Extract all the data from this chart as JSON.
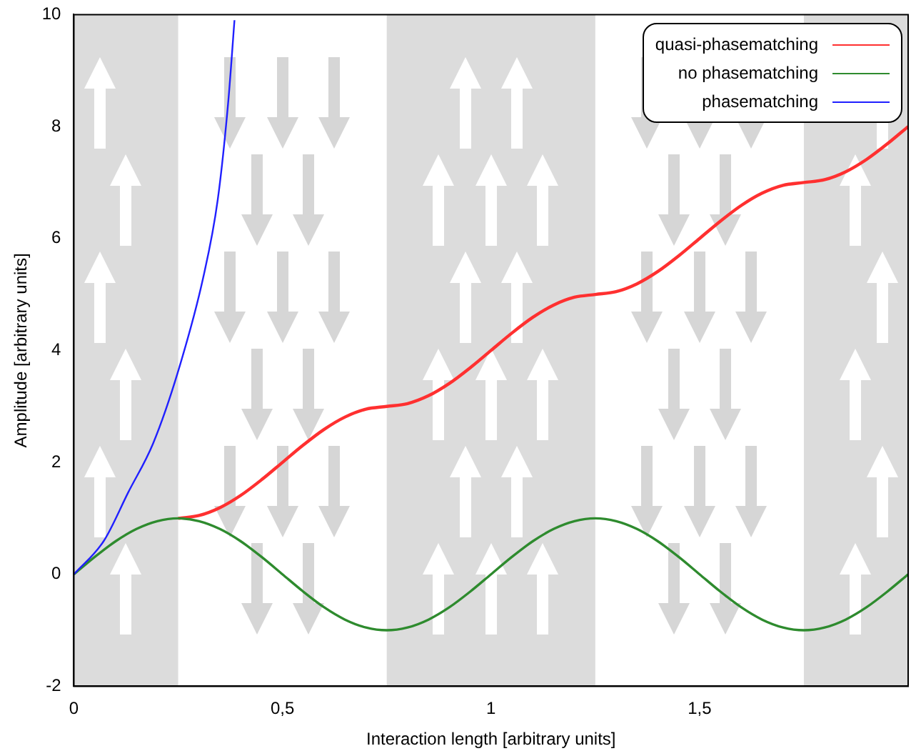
{
  "chart_data": {
    "type": "line",
    "xlabel": "Interaction length [arbitrary units]",
    "ylabel": "Amplitude [arbitrary units]",
    "xlim": [
      0,
      2
    ],
    "xticks": [
      0,
      {
        "value": 0.5,
        "label": "0,5"
      },
      1,
      {
        "value": 1.5,
        "label": "1,5"
      }
    ],
    "ylim": [
      -2,
      10
    ],
    "yticks": [
      -2,
      0,
      2,
      4,
      6,
      8,
      10
    ],
    "legend": "top right",
    "x": [
      0,
      0.05,
      0.1,
      0.15,
      0.2,
      0.25,
      0.3,
      0.35,
      0.4,
      0.45,
      0.5,
      0.55,
      0.6,
      0.65,
      0.7,
      0.75,
      0.8,
      0.85,
      0.9,
      0.95,
      1,
      1.05,
      1.1,
      1.15,
      1.2,
      1.25,
      1.3,
      1.35,
      1.4,
      1.45,
      1.5,
      1.55,
      1.6,
      1.65,
      1.7,
      1.75,
      1.8,
      1.85,
      1.9,
      1.95,
      2
    ],
    "bands": [
      {
        "axis": "x",
        "from": 0,
        "to": 0.25,
        "color": "#dcdcdc"
      },
      {
        "axis": "x",
        "from": 0.75,
        "to": 1.25,
        "color": "#dcdcdc"
      },
      {
        "axis": "x",
        "from": 1.75,
        "to": 2,
        "color": "#dcdcdc"
      }
    ],
    "series": [
      {
        "name": "quasi-phasematching",
        "color": "#ff3030",
        "values": [
          null,
          null,
          null,
          null,
          null,
          1,
          1.05,
          1.19,
          1.41,
          1.69,
          2,
          2.31,
          2.59,
          2.81,
          2.95,
          3,
          3.05,
          3.19,
          3.41,
          3.69,
          4,
          4.31,
          4.59,
          4.81,
          4.95,
          5,
          5.05,
          5.19,
          5.41,
          5.69,
          6,
          6.31,
          6.59,
          6.81,
          6.95,
          7,
          7.05,
          7.19,
          7.41,
          7.69,
          8
        ]
      },
      {
        "name": "no phasematching",
        "color": "#2e8b2e",
        "values": [
          0,
          0.31,
          0.59,
          0.81,
          0.95,
          1,
          0.95,
          0.81,
          0.59,
          0.31,
          0,
          -0.31,
          -0.59,
          -0.81,
          -0.95,
          -1,
          -0.95,
          -0.81,
          -0.59,
          -0.31,
          0,
          0.31,
          0.59,
          0.81,
          0.95,
          1,
          0.95,
          0.81,
          0.59,
          0.31,
          0,
          -0.31,
          -0.59,
          -0.81,
          -0.95,
          -1,
          -0.95,
          -0.81,
          -0.59,
          -0.31,
          0
        ]
      },
      {
        "name": "phasematching",
        "color": "#2020ff",
        "x": [
          0,
          0.072,
          0.13,
          0.19,
          0.25,
          0.31,
          0.345,
          0.37,
          0.385
        ],
        "values": [
          0,
          0.6,
          1.46,
          2.34,
          3.63,
          5.3,
          6.7,
          8.44,
          9.9
        ]
      }
    ]
  }
}
